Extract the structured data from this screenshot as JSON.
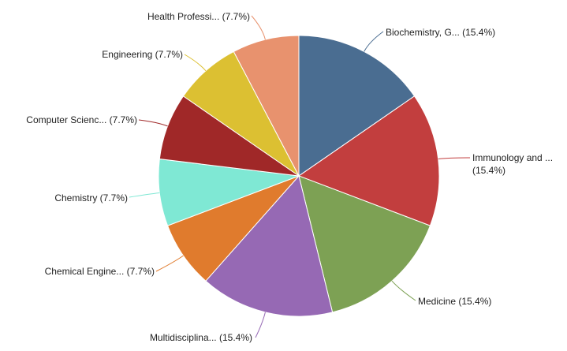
{
  "chart_data": {
    "type": "pie",
    "title": "",
    "slices": [
      {
        "label": "Biochemistry, G... (15.4%)",
        "name": "Biochemistry, G...",
        "value": 15.4,
        "color": "#4a6d91"
      },
      {
        "label": "Immunology and ...",
        "label2": "(15.4%)",
        "name": "Immunology and ...",
        "value": 15.4,
        "color": "#c23e3e"
      },
      {
        "label": "Medicine (15.4%)",
        "name": "Medicine",
        "value": 15.4,
        "color": "#7da154"
      },
      {
        "label": "Multidisciplina... (15.4%)",
        "name": "Multidisciplina...",
        "value": 15.4,
        "color": "#9669b4"
      },
      {
        "label": "Chemical Engine... (7.7%)",
        "name": "Chemical Engine...",
        "value": 7.7,
        "color": "#e07b2d"
      },
      {
        "label": "Chemistry (7.7%)",
        "name": "Chemistry",
        "value": 7.7,
        "color": "#7fe8d4"
      },
      {
        "label": "Computer Scienc... (7.7%)",
        "name": "Computer Scienc...",
        "value": 7.7,
        "color": "#a02828"
      },
      {
        "label": "Engineering (7.7%)",
        "name": "Engineering",
        "value": 7.7,
        "color": "#dcc032"
      },
      {
        "label": "Health Professi... (7.7%)",
        "name": "Health Professi...",
        "value": 7.7,
        "color": "#e8926e"
      }
    ]
  }
}
